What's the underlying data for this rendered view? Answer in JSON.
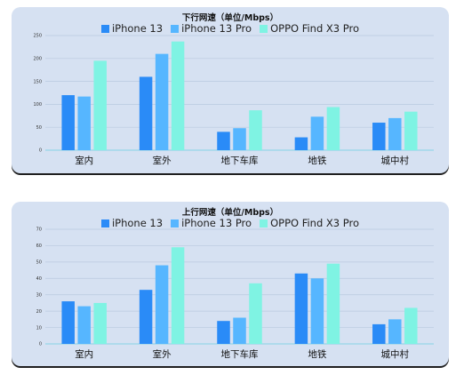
{
  "colors": {
    "s0": "#2a8bf7",
    "s1": "#56b6ff",
    "s2": "#7ff3e3"
  },
  "chart_data": [
    {
      "type": "bar",
      "title": "下行网速（单位/Mbps）",
      "categories": [
        "室内",
        "室外",
        "地下车库",
        "地铁",
        "城中村"
      ],
      "series": [
        {
          "name": "iPhone 13",
          "values": [
            120,
            160,
            40,
            28,
            60
          ]
        },
        {
          "name": "iPhone 13 Pro",
          "values": [
            117,
            210,
            48,
            73,
            70
          ]
        },
        {
          "name": "OPPO Find X3 Pro",
          "values": [
            195,
            237,
            87,
            94,
            84
          ]
        }
      ],
      "ylim": [
        0,
        250
      ],
      "yticks": [
        0,
        50,
        100,
        150,
        200,
        250
      ],
      "legend_position": "top-center",
      "grid": true
    },
    {
      "type": "bar",
      "title": "上行网速（单位/Mbps）",
      "categories": [
        "室内",
        "室外",
        "地下车库",
        "地铁",
        "城中村"
      ],
      "series": [
        {
          "name": "iPhone 13",
          "values": [
            26,
            33,
            14,
            43,
            12
          ]
        },
        {
          "name": "iPhone 13 Pro",
          "values": [
            23,
            48,
            16,
            40,
            15
          ]
        },
        {
          "name": "OPPO Find X3 Pro",
          "values": [
            25,
            59,
            37,
            49,
            22
          ]
        }
      ],
      "ylim": [
        0,
        70
      ],
      "yticks": [
        0,
        10,
        20,
        30,
        40,
        50,
        60,
        70
      ],
      "legend_position": "top-center",
      "grid": true
    }
  ]
}
